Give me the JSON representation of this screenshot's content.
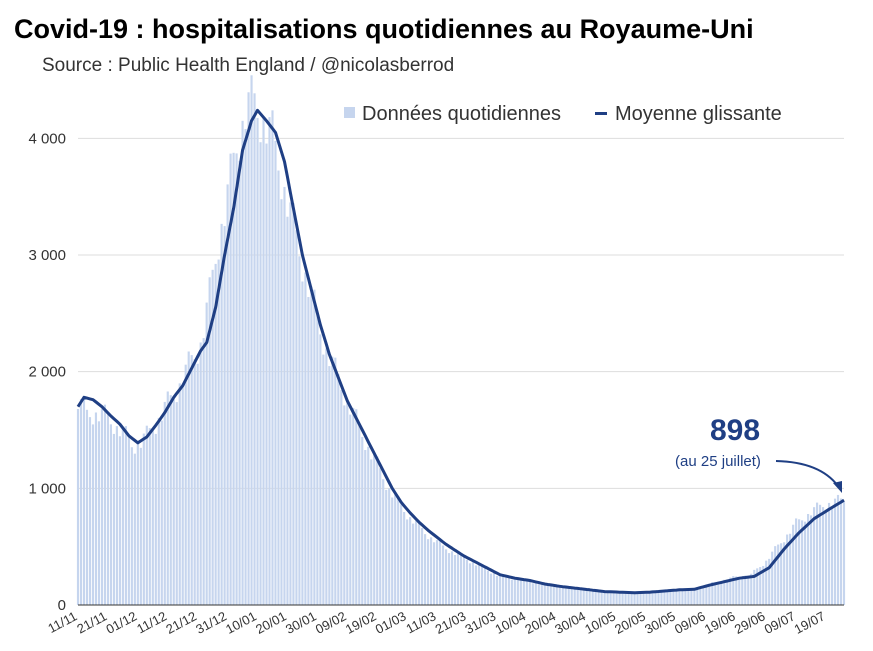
{
  "title": "Covid-19 : hospitalisations quotidiennes au Royaume-Uni",
  "subtitle": "Source : Public Health England / @nicolasberrod",
  "colors": {
    "bars": "#c6d5ee",
    "line": "#1f3f84",
    "grid": "#dddddd",
    "annotation": "#1f3f84"
  },
  "chart_data": {
    "type": "bar",
    "start_date": "2020-11-11",
    "end_date": "2021-07-25",
    "ylim": [
      0,
      4500
    ],
    "yticks": [
      0,
      1000,
      2000,
      3000,
      4000
    ],
    "ytick_labels": [
      "0",
      "1 000",
      "2 000",
      "3 000",
      "4 000"
    ],
    "xtick_labels": [
      "11/11",
      "21/11",
      "01/12",
      "11/12",
      "21/12",
      "31/12",
      "10/01",
      "20/01",
      "30/01",
      "09/02",
      "19/02",
      "01/03",
      "11/03",
      "21/03",
      "31/03",
      "10/04",
      "20/04",
      "30/04",
      "10/05",
      "20/05",
      "30/05",
      "09/06",
      "19/06",
      "29/06",
      "09/07",
      "19/07"
    ],
    "grid": true,
    "legend_position": "top-right",
    "series": [
      {
        "name": "Données quotidiennes",
        "kind": "bar",
        "keypoints": [
          [
            "11/11",
            1750
          ],
          [
            "14/11",
            1640
          ],
          [
            "17/11",
            1650
          ],
          [
            "20/11",
            1620
          ],
          [
            "23/11",
            1560
          ],
          [
            "26/11",
            1480
          ],
          [
            "29/11",
            1380
          ],
          [
            "01/12",
            1380
          ],
          [
            "04/12",
            1450
          ],
          [
            "07/12",
            1560
          ],
          [
            "10/12",
            1690
          ],
          [
            "13/12",
            1800
          ],
          [
            "16/12",
            1950
          ],
          [
            "19/12",
            2100
          ],
          [
            "22/12",
            2250
          ],
          [
            "25/12",
            2650
          ],
          [
            "28/12",
            3150
          ],
          [
            "31/12",
            3500
          ],
          [
            "03/01",
            3950
          ],
          [
            "06/01",
            4250
          ],
          [
            "09/01",
            4300
          ],
          [
            "12/01",
            4180
          ],
          [
            "15/01",
            4000
          ],
          [
            "18/01",
            3700
          ],
          [
            "21/01",
            3350
          ],
          [
            "24/01",
            3050
          ],
          [
            "27/01",
            2750
          ],
          [
            "30/01",
            2450
          ],
          [
            "02/02",
            2200
          ],
          [
            "05/02",
            2000
          ],
          [
            "08/02",
            1820
          ],
          [
            "11/02",
            1640
          ],
          [
            "14/02",
            1470
          ],
          [
            "17/02",
            1300
          ],
          [
            "20/02",
            1150
          ],
          [
            "23/02",
            1000
          ],
          [
            "26/02",
            880
          ],
          [
            "01/03",
            780
          ],
          [
            "04/03",
            700
          ],
          [
            "07/03",
            620
          ],
          [
            "10/03",
            560
          ],
          [
            "13/03",
            500
          ],
          [
            "16/03",
            460
          ],
          [
            "19/03",
            420
          ],
          [
            "22/03",
            380
          ],
          [
            "25/03",
            340
          ],
          [
            "28/03",
            300
          ],
          [
            "31/03",
            260
          ],
          [
            "05/04",
            230
          ],
          [
            "10/04",
            210
          ],
          [
            "15/04",
            180
          ],
          [
            "20/04",
            160
          ],
          [
            "25/04",
            145
          ],
          [
            "30/04",
            130
          ],
          [
            "05/05",
            115
          ],
          [
            "10/05",
            110
          ],
          [
            "15/05",
            105
          ],
          [
            "20/05",
            110
          ],
          [
            "25/05",
            120
          ],
          [
            "30/05",
            130
          ],
          [
            "04/06",
            135
          ],
          [
            "09/06",
            170
          ],
          [
            "14/06",
            210
          ],
          [
            "19/06",
            240
          ],
          [
            "24/06",
            260
          ],
          [
            "29/06",
            380
          ],
          [
            "04/07",
            540
          ],
          [
            "09/07",
            700
          ],
          [
            "14/07",
            800
          ],
          [
            "19/07",
            870
          ],
          [
            "25/07",
            900
          ]
        ]
      },
      {
        "name": "Moyenne glissante",
        "kind": "line",
        "keypoints": [
          [
            "11/11",
            1700
          ],
          [
            "13/11",
            1780
          ],
          [
            "16/11",
            1760
          ],
          [
            "19/11",
            1700
          ],
          [
            "22/11",
            1620
          ],
          [
            "25/11",
            1550
          ],
          [
            "28/11",
            1450
          ],
          [
            "01/12",
            1390
          ],
          [
            "04/12",
            1440
          ],
          [
            "07/12",
            1540
          ],
          [
            "10/12",
            1650
          ],
          [
            "13/12",
            1780
          ],
          [
            "16/12",
            1880
          ],
          [
            "19/12",
            2030
          ],
          [
            "22/12",
            2180
          ],
          [
            "24/12",
            2250
          ],
          [
            "27/12",
            2550
          ],
          [
            "30/12",
            3000
          ],
          [
            "02/01",
            3400
          ],
          [
            "05/01",
            3900
          ],
          [
            "08/01",
            4150
          ],
          [
            "10/01",
            4240
          ],
          [
            "13/01",
            4150
          ],
          [
            "16/01",
            4050
          ],
          [
            "19/01",
            3800
          ],
          [
            "22/01",
            3400
          ],
          [
            "25/01",
            3000
          ],
          [
            "28/01",
            2700
          ],
          [
            "31/01",
            2400
          ],
          [
            "03/02",
            2150
          ],
          [
            "06/02",
            1950
          ],
          [
            "09/02",
            1750
          ],
          [
            "12/02",
            1600
          ],
          [
            "15/02",
            1450
          ],
          [
            "18/02",
            1300
          ],
          [
            "21/02",
            1150
          ],
          [
            "24/02",
            1000
          ],
          [
            "27/02",
            880
          ],
          [
            "02/03",
            790
          ],
          [
            "05/03",
            710
          ],
          [
            "08/03",
            640
          ],
          [
            "11/03",
            580
          ],
          [
            "14/03",
            520
          ],
          [
            "17/03",
            470
          ],
          [
            "20/03",
            420
          ],
          [
            "23/03",
            380
          ],
          [
            "26/03",
            340
          ],
          [
            "29/03",
            300
          ],
          [
            "01/04",
            260
          ],
          [
            "06/04",
            230
          ],
          [
            "11/04",
            210
          ],
          [
            "16/04",
            180
          ],
          [
            "21/04",
            160
          ],
          [
            "26/04",
            145
          ],
          [
            "01/05",
            130
          ],
          [
            "06/05",
            115
          ],
          [
            "11/05",
            110
          ],
          [
            "16/05",
            105
          ],
          [
            "21/05",
            110
          ],
          [
            "26/05",
            120
          ],
          [
            "31/05",
            130
          ],
          [
            "05/06",
            135
          ],
          [
            "10/06",
            170
          ],
          [
            "15/06",
            200
          ],
          [
            "20/06",
            230
          ],
          [
            "25/06",
            245
          ],
          [
            "30/06",
            320
          ],
          [
            "05/07",
            480
          ],
          [
            "10/07",
            620
          ],
          [
            "15/07",
            740
          ],
          [
            "20/07",
            820
          ],
          [
            "25/07",
            898
          ]
        ]
      }
    ],
    "annotation": {
      "value": "898",
      "note": "(au 25 juillet)"
    }
  }
}
